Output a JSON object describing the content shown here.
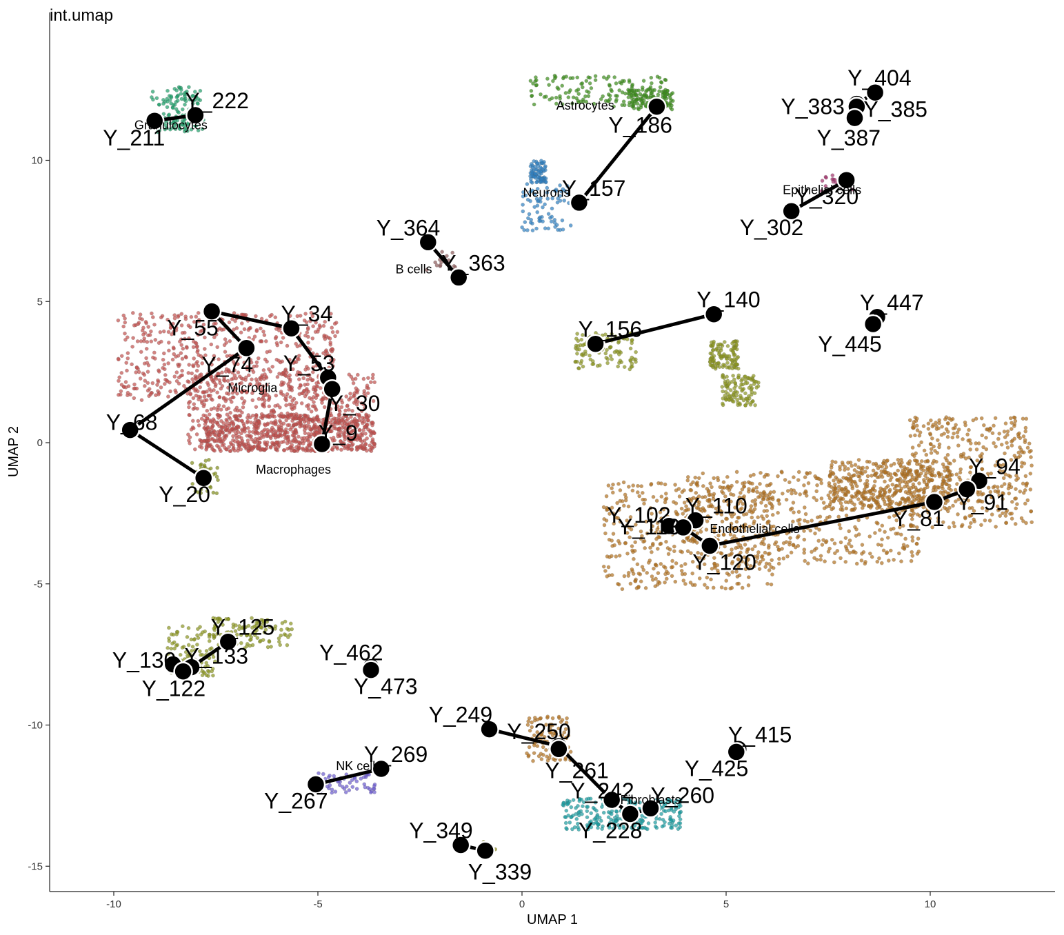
{
  "chart_data": {
    "type": "scatter",
    "title": "int.umap",
    "xlabel": "UMAP 1",
    "ylabel": "UMAP 2",
    "xlim": [
      -11.5,
      13
    ],
    "ylim": [
      -15.8,
      15.3
    ],
    "xticks": [
      -10,
      -5,
      0,
      5,
      10
    ],
    "yticks": [
      -15,
      -10,
      -5,
      0,
      5,
      10
    ],
    "xtick_labels": [
      "-10",
      "-5",
      "0",
      "5",
      "10"
    ],
    "ytick_labels": [
      "-15",
      "-10",
      "-5",
      "0",
      "5",
      "10"
    ],
    "grid": false,
    "clusters": [
      {
        "name": "Microglia",
        "color": "#C0504D",
        "label_x": -6.6,
        "label_y": 1.8
      },
      {
        "name": "Macrophages",
        "color": "#7F8C1A",
        "label_x": -5.6,
        "label_y": -1.1
      },
      {
        "name": "Endothelial cells",
        "color": "#B07020",
        "label_x": 5.7,
        "label_y": -3.2
      },
      {
        "name": "Astrocytes",
        "color": "#3A8C1A",
        "label_x": 1.55,
        "label_y": 11.8
      },
      {
        "name": "Neurons",
        "color": "#2E7FC0",
        "label_x": 0.6,
        "label_y": 8.7
      },
      {
        "name": "Granulocytes",
        "color": "#1F9E6A",
        "label_x": -8.6,
        "label_y": 11.1
      },
      {
        "name": "B cells",
        "color": "#8B5A5A",
        "label_x": -2.65,
        "label_y": 6.0
      },
      {
        "name": "Epithelial cells",
        "color": "#A0306A",
        "label_x": 7.35,
        "label_y": 8.8
      },
      {
        "name": "NK cells",
        "color": "#6A5ACD",
        "label_x": -4.0,
        "label_y": -11.6
      },
      {
        "name": "Fibroblasts",
        "color": "#1A9BA0",
        "label_x": 3.15,
        "label_y": -12.8
      }
    ],
    "nodes": [
      {
        "label": "Y_222",
        "x": -8.0,
        "y": 11.6
      },
      {
        "label": "Y_211",
        "x": -9.0,
        "y": 11.4
      },
      {
        "label": "Y_186",
        "x": 3.3,
        "y": 11.9
      },
      {
        "label": "Y_157",
        "x": 1.4,
        "y": 8.5
      },
      {
        "label": "Y_364",
        "x": -2.3,
        "y": 7.1
      },
      {
        "label": "Y_363",
        "x": -1.55,
        "y": 5.85
      },
      {
        "label": "Y_404",
        "x": 8.65,
        "y": 12.4
      },
      {
        "label": "Y_383",
        "x": 8.2,
        "y": 12.0
      },
      {
        "label": "Y_385",
        "x": 8.2,
        "y": 11.9
      },
      {
        "label": "Y_387",
        "x": 8.15,
        "y": 11.5
      },
      {
        "label": "Y_320",
        "x": 7.95,
        "y": 9.3
      },
      {
        "label": "Y_302",
        "x": 6.6,
        "y": 8.2
      },
      {
        "label": "Y_55",
        "x": -7.6,
        "y": 4.65
      },
      {
        "label": "Y_34",
        "x": -5.65,
        "y": 4.05
      },
      {
        "label": "Y_74",
        "x": -6.75,
        "y": 3.35
      },
      {
        "label": "Y_53",
        "x": -4.75,
        "y": 2.3
      },
      {
        "label": "Y_30",
        "x": -4.65,
        "y": 1.9
      },
      {
        "label": "Y_68",
        "x": -9.6,
        "y": 0.45
      },
      {
        "label": "Y_9",
        "x": -4.9,
        "y": -0.05
      },
      {
        "label": "Y_20",
        "x": -7.8,
        "y": -1.25
      },
      {
        "label": "Y_140",
        "x": 4.7,
        "y": 4.55
      },
      {
        "label": "Y_156",
        "x": 1.8,
        "y": 3.5
      },
      {
        "label": "Y_447",
        "x": 8.7,
        "y": 4.45
      },
      {
        "label": "Y_445",
        "x": 8.6,
        "y": 4.2
      },
      {
        "label": "Y_94",
        "x": 11.2,
        "y": -1.35
      },
      {
        "label": "Y_91",
        "x": 10.9,
        "y": -1.65
      },
      {
        "label": "Y_81",
        "x": 10.1,
        "y": -2.1
      },
      {
        "label": "Y_110",
        "x": 4.25,
        "y": -2.75
      },
      {
        "label": "Y_102",
        "x": 3.6,
        "y": -2.95
      },
      {
        "label": "Y_113",
        "x": 3.95,
        "y": -3.0
      },
      {
        "label": "Y_120",
        "x": 4.6,
        "y": -3.65
      },
      {
        "label": "Y_125",
        "x": -7.2,
        "y": -7.05
      },
      {
        "label": "Y_130",
        "x": -8.55,
        "y": -7.85
      },
      {
        "label": "Y_133",
        "x": -8.1,
        "y": -7.95
      },
      {
        "label": "Y_122",
        "x": -8.3,
        "y": -8.1
      },
      {
        "label": "Y_462",
        "x": -3.7,
        "y": -7.95
      },
      {
        "label": "Y_473",
        "x": -3.7,
        "y": -8.05
      },
      {
        "label": "Y_249",
        "x": -0.8,
        "y": -10.15
      },
      {
        "label": "Y_250",
        "x": 0.9,
        "y": -10.75
      },
      {
        "label": "Y_261",
        "x": 0.9,
        "y": -10.85
      },
      {
        "label": "Y_269",
        "x": -3.45,
        "y": -11.55
      },
      {
        "label": "Y_267",
        "x": -5.05,
        "y": -12.1
      },
      {
        "label": "Y_415",
        "x": 5.3,
        "y": -10.85
      },
      {
        "label": "Y_425",
        "x": 5.25,
        "y": -10.95
      },
      {
        "label": "Y_242",
        "x": 2.2,
        "y": -12.65
      },
      {
        "label": "Y_260",
        "x": 3.15,
        "y": -12.95
      },
      {
        "label": "Y_228",
        "x": 2.65,
        "y": -13.15
      },
      {
        "label": "Y_349",
        "x": -1.5,
        "y": -14.25
      },
      {
        "label": "Y_339",
        "x": -0.9,
        "y": -14.45
      }
    ]
  }
}
